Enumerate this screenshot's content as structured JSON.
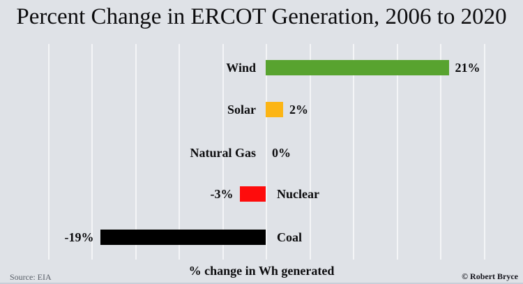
{
  "page": {
    "title": "Percent Change in ERCOT Generation, 2006 to 2020",
    "source": "Source: EIA",
    "credit": "© Robert Bryce",
    "background_color": "#dfe2e7"
  },
  "chart_data": {
    "type": "bar",
    "orientation": "horizontal",
    "title": "Percent Change in ERCOT Generation, 2006 to 2020",
    "xlabel": "% change in Wh generated",
    "categories": [
      "Wind",
      "Solar",
      "Natural Gas",
      "Nuclear",
      "Coal"
    ],
    "values": [
      21,
      2,
      0,
      -3,
      -19
    ],
    "value_labels": [
      "21%",
      "2%",
      "0%",
      "-3%",
      "-19%"
    ],
    "bar_colors": [
      "#58a32f",
      "#fcb515",
      null,
      "#fe0c0c",
      "#000000"
    ],
    "xlim": [
      -25,
      30
    ],
    "gridline_step": 5,
    "grid": "vertical-light",
    "legend": "none",
    "value_label_position": "outside-bar-end",
    "category_label_position": "opposite-side-of-baseline"
  }
}
